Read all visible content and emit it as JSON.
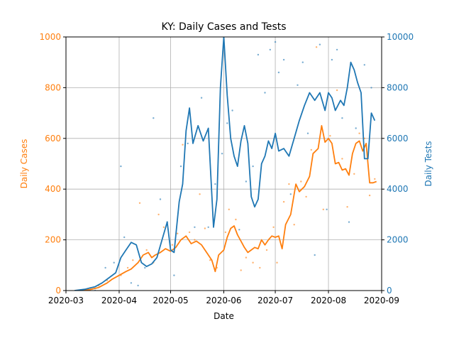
{
  "chart_data": {
    "type": "line",
    "title": "KY: Daily Cases and Tests",
    "xlabel": "Date",
    "ylabel_left": "Daily Cases",
    "ylabel_right": "Daily Tests",
    "colors": {
      "cases": "#ff7f0e",
      "tests": "#1f77b4",
      "grid": "#b0b0b0"
    },
    "grid": true,
    "xlim": [
      "2020-03-01",
      "2020-09-01"
    ],
    "ylim_left": [
      0,
      1000
    ],
    "ylim_right": [
      0,
      10000
    ],
    "x_ticks": [
      {
        "date": "2020-03-01",
        "label": "2020-03"
      },
      {
        "date": "2020-04-01",
        "label": "2020-04"
      },
      {
        "date": "2020-05-01",
        "label": "2020-05"
      },
      {
        "date": "2020-06-01",
        "label": "2020-06"
      },
      {
        "date": "2020-07-01",
        "label": "2020-07"
      },
      {
        "date": "2020-08-01",
        "label": "2020-08"
      },
      {
        "date": "2020-09-01",
        "label": "2020-09"
      }
    ],
    "y_ticks_left": [
      {
        "value": 0,
        "label": "0"
      },
      {
        "value": 200,
        "label": "200"
      },
      {
        "value": 400,
        "label": "400"
      },
      {
        "value": 600,
        "label": "600"
      },
      {
        "value": 800,
        "label": "800"
      },
      {
        "value": 1000,
        "label": "1000"
      }
    ],
    "y_ticks_right": [
      {
        "value": 0,
        "label": "0"
      },
      {
        "value": 2000,
        "label": "2000"
      },
      {
        "value": 4000,
        "label": "4000"
      },
      {
        "value": 6000,
        "label": "6000"
      },
      {
        "value": 8000,
        "label": "8000"
      },
      {
        "value": 10000,
        "label": "10000"
      }
    ],
    "series": [
      {
        "key": "cases_avg",
        "axis": "left",
        "style": "line",
        "points": [
          [
            "2020-03-06",
            0
          ],
          [
            "2020-03-10",
            1
          ],
          [
            "2020-03-15",
            4
          ],
          [
            "2020-03-20",
            12
          ],
          [
            "2020-03-25",
            30
          ],
          [
            "2020-03-28",
            45
          ],
          [
            "2020-04-01",
            60
          ],
          [
            "2020-04-05",
            75
          ],
          [
            "2020-04-08",
            85
          ],
          [
            "2020-04-12",
            110
          ],
          [
            "2020-04-15",
            140
          ],
          [
            "2020-04-18",
            150
          ],
          [
            "2020-04-20",
            130
          ],
          [
            "2020-04-22",
            140
          ],
          [
            "2020-04-25",
            150
          ],
          [
            "2020-04-28",
            165
          ],
          [
            "2020-05-01",
            155
          ],
          [
            "2020-05-04",
            170
          ],
          [
            "2020-05-07",
            200
          ],
          [
            "2020-05-10",
            215
          ],
          [
            "2020-05-13",
            185
          ],
          [
            "2020-05-16",
            195
          ],
          [
            "2020-05-19",
            180
          ],
          [
            "2020-05-22",
            150
          ],
          [
            "2020-05-25",
            120
          ],
          [
            "2020-05-27",
            75
          ],
          [
            "2020-05-29",
            140
          ],
          [
            "2020-06-01",
            160
          ],
          [
            "2020-06-03",
            210
          ],
          [
            "2020-06-05",
            245
          ],
          [
            "2020-06-07",
            255
          ],
          [
            "2020-06-09",
            220
          ],
          [
            "2020-06-11",
            195
          ],
          [
            "2020-06-13",
            170
          ],
          [
            "2020-06-15",
            150
          ],
          [
            "2020-06-17",
            160
          ],
          [
            "2020-06-19",
            170
          ],
          [
            "2020-06-21",
            165
          ],
          [
            "2020-06-23",
            200
          ],
          [
            "2020-06-25",
            180
          ],
          [
            "2020-06-27",
            200
          ],
          [
            "2020-06-29",
            215
          ],
          [
            "2020-07-01",
            210
          ],
          [
            "2020-07-03",
            215
          ],
          [
            "2020-07-05",
            165
          ],
          [
            "2020-07-07",
            260
          ],
          [
            "2020-07-10",
            300
          ],
          [
            "2020-07-13",
            420
          ],
          [
            "2020-07-15",
            390
          ],
          [
            "2020-07-18",
            410
          ],
          [
            "2020-07-21",
            450
          ],
          [
            "2020-07-23",
            540
          ],
          [
            "2020-07-26",
            560
          ],
          [
            "2020-07-28",
            650
          ],
          [
            "2020-07-30",
            585
          ],
          [
            "2020-08-01",
            600
          ],
          [
            "2020-08-03",
            580
          ],
          [
            "2020-08-05",
            500
          ],
          [
            "2020-08-07",
            505
          ],
          [
            "2020-08-09",
            475
          ],
          [
            "2020-08-11",
            480
          ],
          [
            "2020-08-13",
            455
          ],
          [
            "2020-08-15",
            540
          ],
          [
            "2020-08-17",
            580
          ],
          [
            "2020-08-19",
            590
          ],
          [
            "2020-08-21",
            550
          ],
          [
            "2020-08-23",
            580
          ],
          [
            "2020-08-25",
            425
          ],
          [
            "2020-08-27",
            425
          ],
          [
            "2020-08-29",
            430
          ]
        ]
      },
      {
        "key": "tests_avg",
        "axis": "right",
        "style": "line",
        "points": [
          [
            "2020-03-06",
            0
          ],
          [
            "2020-03-12",
            50
          ],
          [
            "2020-03-18",
            150
          ],
          [
            "2020-03-22",
            300
          ],
          [
            "2020-03-26",
            500
          ],
          [
            "2020-03-30",
            700
          ],
          [
            "2020-04-02",
            1300
          ],
          [
            "2020-04-05",
            1600
          ],
          [
            "2020-04-08",
            1900
          ],
          [
            "2020-04-11",
            1800
          ],
          [
            "2020-04-14",
            1100
          ],
          [
            "2020-04-17",
            950
          ],
          [
            "2020-04-20",
            1050
          ],
          [
            "2020-04-23",
            1300
          ],
          [
            "2020-04-26",
            2000
          ],
          [
            "2020-04-29",
            2700
          ],
          [
            "2020-05-01",
            1600
          ],
          [
            "2020-05-03",
            1500
          ],
          [
            "2020-05-06",
            3500
          ],
          [
            "2020-05-08",
            4200
          ],
          [
            "2020-05-10",
            6300
          ],
          [
            "2020-05-12",
            7200
          ],
          [
            "2020-05-14",
            5800
          ],
          [
            "2020-05-17",
            6500
          ],
          [
            "2020-05-20",
            5900
          ],
          [
            "2020-05-23",
            6400
          ],
          [
            "2020-05-26",
            2500
          ],
          [
            "2020-05-28",
            3600
          ],
          [
            "2020-05-30",
            8000
          ],
          [
            "2020-06-01",
            10000
          ],
          [
            "2020-06-03",
            7700
          ],
          [
            "2020-06-05",
            6000
          ],
          [
            "2020-06-07",
            5300
          ],
          [
            "2020-06-09",
            4900
          ],
          [
            "2020-06-11",
            5900
          ],
          [
            "2020-06-13",
            6500
          ],
          [
            "2020-06-15",
            5800
          ],
          [
            "2020-06-17",
            3700
          ],
          [
            "2020-06-19",
            3300
          ],
          [
            "2020-06-21",
            3600
          ],
          [
            "2020-06-23",
            5000
          ],
          [
            "2020-06-25",
            5300
          ],
          [
            "2020-06-27",
            5900
          ],
          [
            "2020-06-29",
            5600
          ],
          [
            "2020-07-01",
            6200
          ],
          [
            "2020-07-03",
            5500
          ],
          [
            "2020-07-06",
            5600
          ],
          [
            "2020-07-09",
            5300
          ],
          [
            "2020-07-12",
            6000
          ],
          [
            "2020-07-15",
            6700
          ],
          [
            "2020-07-18",
            7300
          ],
          [
            "2020-07-21",
            7800
          ],
          [
            "2020-07-24",
            7500
          ],
          [
            "2020-07-27",
            7800
          ],
          [
            "2020-07-30",
            7100
          ],
          [
            "2020-08-01",
            7800
          ],
          [
            "2020-08-03",
            7600
          ],
          [
            "2020-08-05",
            7100
          ],
          [
            "2020-08-08",
            7500
          ],
          [
            "2020-08-10",
            7300
          ],
          [
            "2020-08-12",
            8000
          ],
          [
            "2020-08-14",
            9000
          ],
          [
            "2020-08-16",
            8700
          ],
          [
            "2020-08-18",
            8200
          ],
          [
            "2020-08-20",
            7800
          ],
          [
            "2020-08-22",
            5200
          ],
          [
            "2020-08-24",
            5200
          ],
          [
            "2020-08-26",
            7000
          ],
          [
            "2020-08-28",
            6700
          ]
        ]
      },
      {
        "key": "cases_daily",
        "axis": "left",
        "style": "scatter",
        "points": [
          [
            "2020-03-15",
            10
          ],
          [
            "2020-03-20",
            20
          ],
          [
            "2020-03-25",
            40
          ],
          [
            "2020-04-02",
            60
          ],
          [
            "2020-04-06",
            90
          ],
          [
            "2020-04-09",
            120
          ],
          [
            "2020-04-13",
            345
          ],
          [
            "2020-04-17",
            160
          ],
          [
            "2020-04-21",
            110
          ],
          [
            "2020-04-24",
            300
          ],
          [
            "2020-04-27",
            250
          ],
          [
            "2020-05-02",
            180
          ],
          [
            "2020-05-05",
            225
          ],
          [
            "2020-05-08",
            575
          ],
          [
            "2020-05-12",
            230
          ],
          [
            "2020-05-15",
            200
          ],
          [
            "2020-05-18",
            380
          ],
          [
            "2020-05-21",
            245
          ],
          [
            "2020-05-24",
            120
          ],
          [
            "2020-05-28",
            90
          ],
          [
            "2020-06-02",
            230
          ],
          [
            "2020-06-04",
            320
          ],
          [
            "2020-06-08",
            280
          ],
          [
            "2020-06-11",
            80
          ],
          [
            "2020-06-14",
            130
          ],
          [
            "2020-06-18",
            110
          ],
          [
            "2020-06-22",
            90
          ],
          [
            "2020-06-26",
            160
          ],
          [
            "2020-06-30",
            250
          ],
          [
            "2020-07-02",
            110
          ],
          [
            "2020-07-06",
            350
          ],
          [
            "2020-07-09",
            420
          ],
          [
            "2020-07-12",
            260
          ],
          [
            "2020-07-16",
            430
          ],
          [
            "2020-07-19",
            370
          ],
          [
            "2020-07-22",
            555
          ],
          [
            "2020-07-25",
            960
          ],
          [
            "2020-07-29",
            320
          ],
          [
            "2020-08-02",
            610
          ],
          [
            "2020-08-06",
            790
          ],
          [
            "2020-08-09",
            520
          ],
          [
            "2020-08-12",
            330
          ],
          [
            "2020-08-16",
            460
          ],
          [
            "2020-08-19",
            620
          ],
          [
            "2020-08-22",
            600
          ],
          [
            "2020-08-25",
            375
          ],
          [
            "2020-08-28",
            440
          ]
        ]
      },
      {
        "key": "tests_daily",
        "axis": "right",
        "style": "scatter",
        "points": [
          [
            "2020-03-18",
            0
          ],
          [
            "2020-03-24",
            900
          ],
          [
            "2020-03-29",
            1100
          ],
          [
            "2020-04-02",
            4900
          ],
          [
            "2020-04-04",
            2100
          ],
          [
            "2020-04-08",
            300
          ],
          [
            "2020-04-12",
            200
          ],
          [
            "2020-04-16",
            900
          ],
          [
            "2020-04-21",
            6800
          ],
          [
            "2020-04-25",
            3600
          ],
          [
            "2020-04-29",
            2700
          ],
          [
            "2020-05-03",
            600
          ],
          [
            "2020-05-07",
            4900
          ],
          [
            "2020-05-11",
            5800
          ],
          [
            "2020-05-15",
            2500
          ],
          [
            "2020-05-19",
            7600
          ],
          [
            "2020-05-23",
            2500
          ],
          [
            "2020-05-27",
            4200
          ],
          [
            "2020-05-31",
            5400
          ],
          [
            "2020-06-03",
            6600
          ],
          [
            "2020-06-06",
            7100
          ],
          [
            "2020-06-10",
            2400
          ],
          [
            "2020-06-14",
            4300
          ],
          [
            "2020-06-18",
            4900
          ],
          [
            "2020-06-21",
            9300
          ],
          [
            "2020-06-25",
            7800
          ],
          [
            "2020-06-28",
            9500
          ],
          [
            "2020-07-01",
            9800
          ],
          [
            "2020-07-03",
            8600
          ],
          [
            "2020-07-06",
            9100
          ],
          [
            "2020-07-10",
            3800
          ],
          [
            "2020-07-14",
            8100
          ],
          [
            "2020-07-17",
            9000
          ],
          [
            "2020-07-20",
            6200
          ],
          [
            "2020-07-24",
            1400
          ],
          [
            "2020-07-27",
            9700
          ],
          [
            "2020-07-31",
            3200
          ],
          [
            "2020-08-03",
            9100
          ],
          [
            "2020-08-06",
            9500
          ],
          [
            "2020-08-09",
            6800
          ],
          [
            "2020-08-13",
            2700
          ],
          [
            "2020-08-17",
            6400
          ],
          [
            "2020-08-19",
            10100
          ],
          [
            "2020-08-22",
            8900
          ],
          [
            "2020-08-26",
            8000
          ]
        ]
      }
    ]
  }
}
